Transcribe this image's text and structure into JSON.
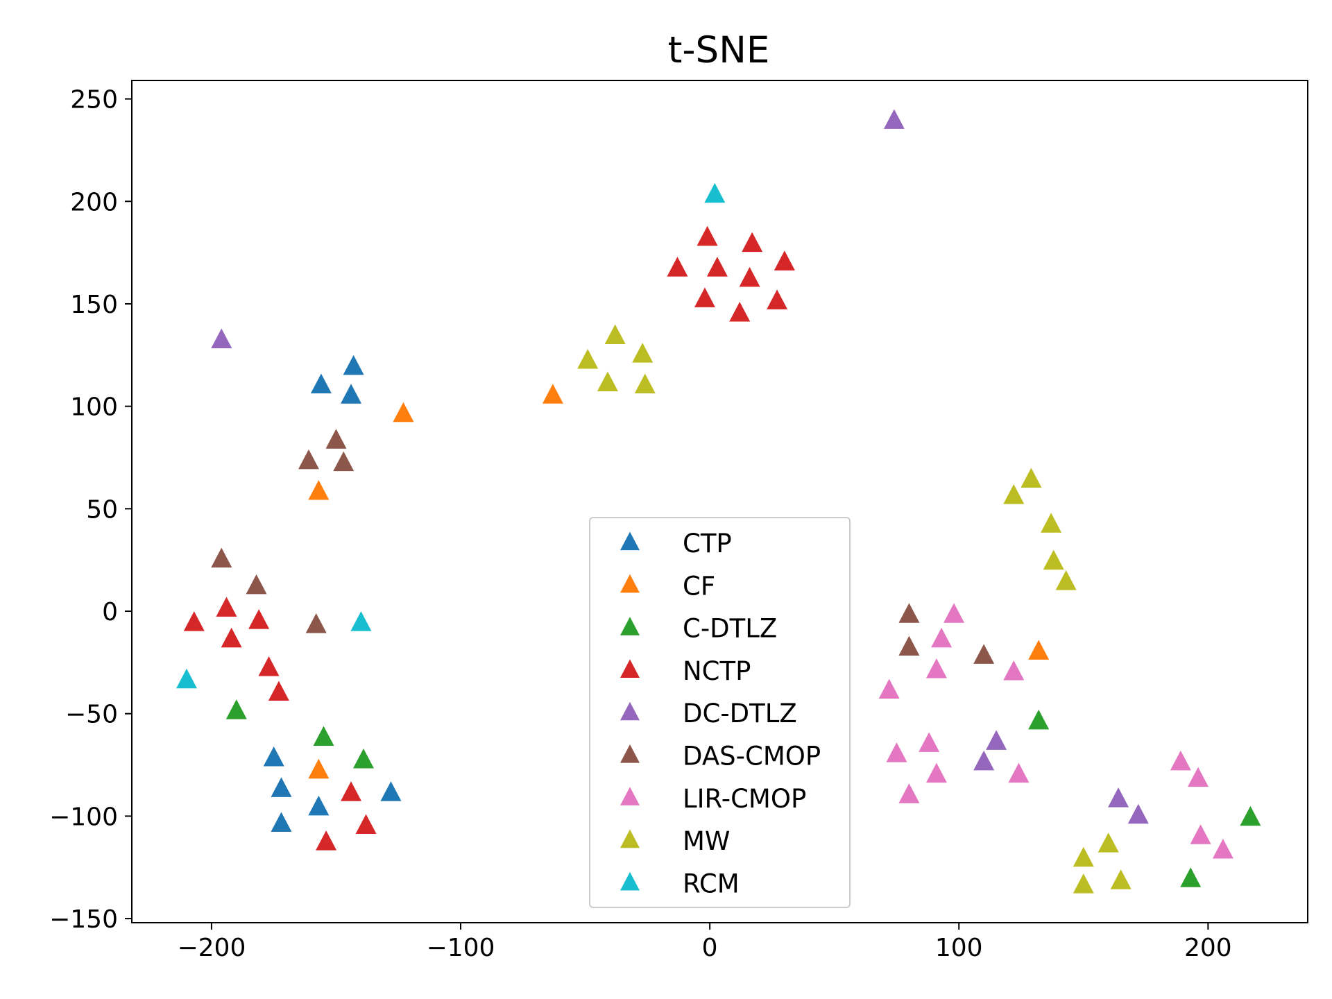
{
  "chart_data": {
    "type": "scatter",
    "title": "t-SNE",
    "xlabel": "",
    "ylabel": "",
    "xlim": [
      -232,
      240
    ],
    "ylim": [
      -152,
      259
    ],
    "x_ticks": [
      -200,
      -100,
      0,
      100,
      200
    ],
    "y_ticks": [
      -150,
      -100,
      -50,
      0,
      50,
      100,
      150,
      200,
      250
    ],
    "marker": "triangle-up",
    "grid": false,
    "legend_position": "lower-center",
    "series": [
      {
        "name": "CTP",
        "color": "#1f77b4",
        "points": [
          [
            -143,
            119
          ],
          [
            -156,
            110
          ],
          [
            -144,
            105
          ],
          [
            -175,
            -72
          ],
          [
            -172,
            -87
          ],
          [
            -172,
            -104
          ],
          [
            -157,
            -96
          ],
          [
            -128,
            -89
          ]
        ]
      },
      {
        "name": "CF",
        "color": "#ff7f0e",
        "points": [
          [
            -123,
            96
          ],
          [
            -157,
            58
          ],
          [
            -63,
            105
          ],
          [
            -157,
            -78
          ],
          [
            132,
            -20
          ]
        ]
      },
      {
        "name": "C-DTLZ",
        "color": "#2ca02c",
        "points": [
          [
            -190,
            -49
          ],
          [
            -155,
            -62
          ],
          [
            -139,
            -73
          ],
          [
            132,
            -54
          ],
          [
            217,
            -101
          ],
          [
            193,
            -131
          ]
        ]
      },
      {
        "name": "NCTP",
        "color": "#d62728",
        "points": [
          [
            -207,
            -6
          ],
          [
            -194,
            1
          ],
          [
            -192,
            -14
          ],
          [
            -181,
            -5
          ],
          [
            -177,
            -28
          ],
          [
            -173,
            -40
          ],
          [
            -144,
            -89
          ],
          [
            -154,
            -113
          ],
          [
            -138,
            -105
          ],
          [
            -1,
            182
          ],
          [
            17,
            179
          ],
          [
            30,
            170
          ],
          [
            -13,
            167
          ],
          [
            3,
            167
          ],
          [
            16,
            162
          ],
          [
            -2,
            152
          ],
          [
            27,
            151
          ],
          [
            12,
            145
          ]
        ]
      },
      {
        "name": "DC-DTLZ",
        "color": "#9467bd",
        "points": [
          [
            -196,
            132
          ],
          [
            74,
            239
          ],
          [
            115,
            -64
          ],
          [
            110,
            -74
          ],
          [
            164,
            -92
          ],
          [
            172,
            -100
          ]
        ]
      },
      {
        "name": "DAS-CMOP",
        "color": "#8c564b",
        "points": [
          [
            -150,
            83
          ],
          [
            -161,
            73
          ],
          [
            -147,
            72
          ],
          [
            -196,
            25
          ],
          [
            -182,
            12
          ],
          [
            -158,
            -7
          ],
          [
            80,
            -2
          ],
          [
            80,
            -18
          ],
          [
            110,
            -22
          ]
        ]
      },
      {
        "name": "LIR-CMOP",
        "color": "#e377c2",
        "points": [
          [
            98,
            -2
          ],
          [
            93,
            -14
          ],
          [
            72,
            -39
          ],
          [
            91,
            -29
          ],
          [
            122,
            -30
          ],
          [
            75,
            -70
          ],
          [
            88,
            -65
          ],
          [
            91,
            -80
          ],
          [
            124,
            -80
          ],
          [
            80,
            -90
          ],
          [
            189,
            -74
          ],
          [
            196,
            -82
          ],
          [
            197,
            -110
          ],
          [
            206,
            -117
          ]
        ]
      },
      {
        "name": "MW",
        "color": "#bcbd22",
        "points": [
          [
            -38,
            134
          ],
          [
            -49,
            122
          ],
          [
            -27,
            125
          ],
          [
            -41,
            111
          ],
          [
            -26,
            110
          ],
          [
            129,
            64
          ],
          [
            122,
            56
          ],
          [
            137,
            42
          ],
          [
            138,
            24
          ],
          [
            143,
            14
          ],
          [
            150,
            -121
          ],
          [
            160,
            -114
          ],
          [
            150,
            -134
          ],
          [
            165,
            -132
          ]
        ]
      },
      {
        "name": "RCM",
        "color": "#17becf",
        "points": [
          [
            2,
            203
          ],
          [
            -140,
            -6
          ],
          [
            -210,
            -34
          ]
        ]
      }
    ]
  }
}
